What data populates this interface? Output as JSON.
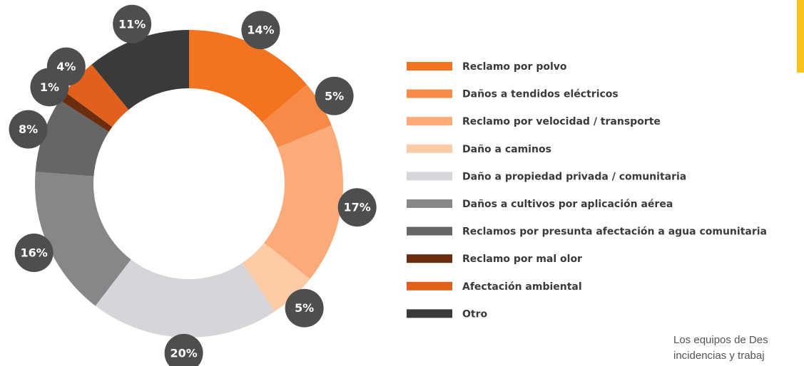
{
  "chart_data": {
    "type": "donut",
    "categories": [
      "Reclamo por polvo",
      "Daños a tendidos eléctricos",
      "Reclamo por velocidad / transporte",
      "Daño a caminos",
      "Daño a propiedad privada / comunitaria",
      "Daños a cultivos por aplicación aérea",
      "Reclamos por presunta afectación a agua comunitaria",
      "Reclamo por mal olor",
      "Afectación ambiental",
      "Otro"
    ],
    "values": [
      14,
      5,
      17,
      5,
      20,
      16,
      8,
      1,
      4,
      11
    ],
    "value_labels": [
      "14%",
      "5%",
      "17%",
      "5%",
      "20%",
      "16%",
      "8%",
      "1%",
      "4%",
      "11%"
    ],
    "colors": [
      "#f47321",
      "#f68b47",
      "#fbab79",
      "#fdcba6",
      "#d6d5d9",
      "#878787",
      "#666666",
      "#6b2d0e",
      "#e0601c",
      "#3a3a3a"
    ],
    "legend": "right"
  },
  "page_text": [
    "Los equipos de Des",
    "incidencias y trabaj"
  ]
}
